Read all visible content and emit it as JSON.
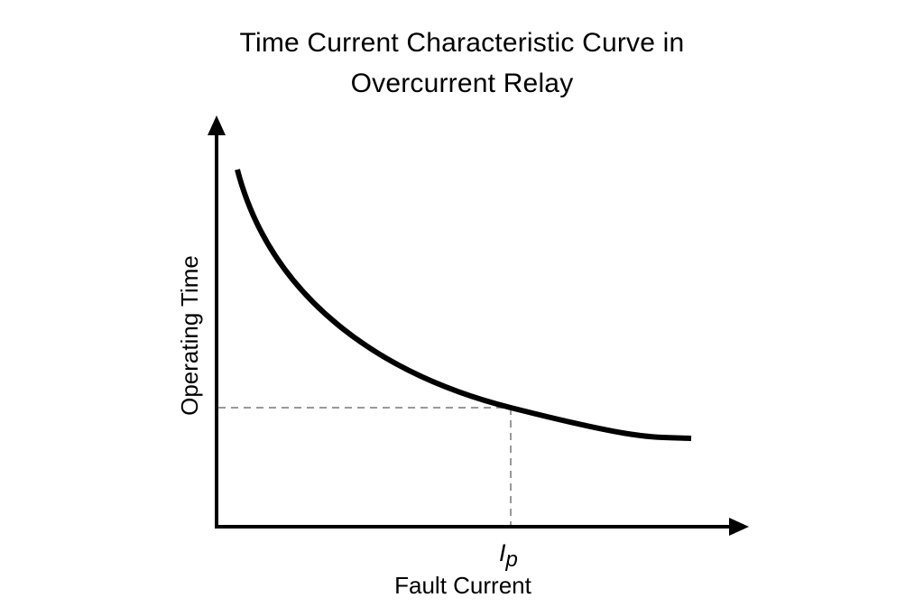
{
  "title_line1": "Time Current Characteristic Curve in",
  "title_line2": "Overcurrent Relay",
  "y_axis_label": "Operating Time",
  "x_axis_label": "Fault Current",
  "marker_label_main": "I",
  "marker_label_sub": "p",
  "colors": {
    "curve": "#000000",
    "axes": "#000000",
    "guide_dash": "#999999"
  }
}
